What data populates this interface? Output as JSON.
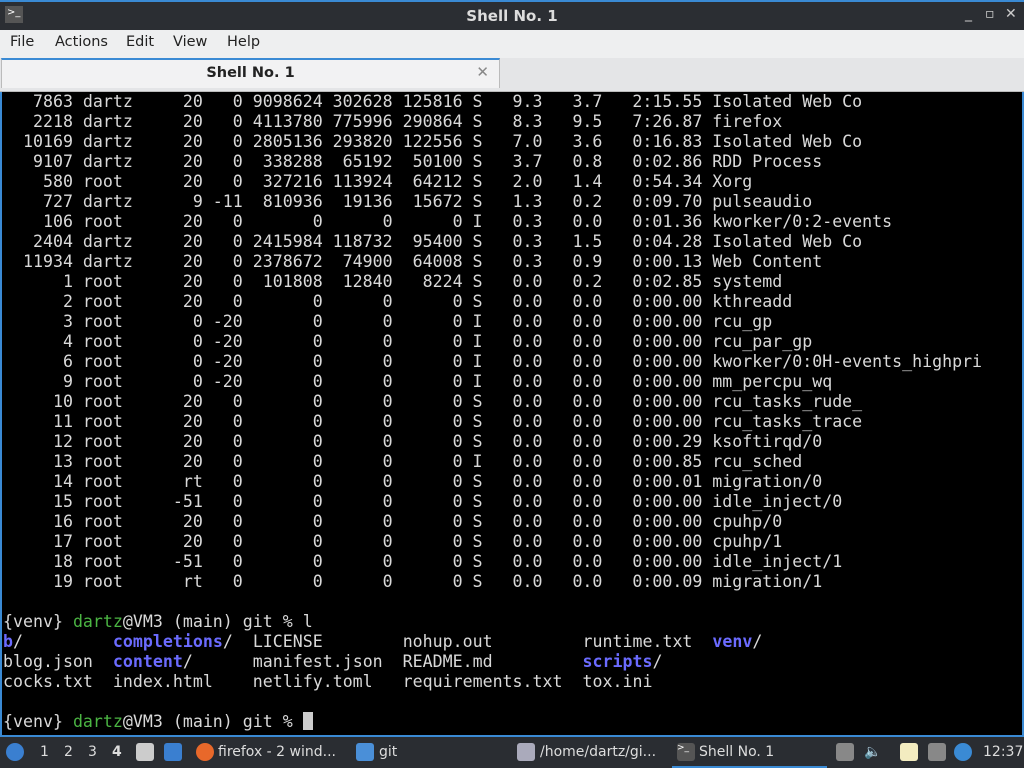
{
  "window": {
    "title": "Shell No. 1"
  },
  "menu": [
    "File",
    "Actions",
    "Edit",
    "View",
    "Help"
  ],
  "tab": {
    "label": "Shell No. 1"
  },
  "processes": [
    [
      "7863",
      "dartz",
      "20",
      "0",
      "9098624",
      "302628",
      "125816",
      "S",
      "9.3",
      "3.7",
      "2:15.55",
      "Isolated Web Co"
    ],
    [
      "2218",
      "dartz",
      "20",
      "0",
      "4113780",
      "775996",
      "290864",
      "S",
      "8.3",
      "9.5",
      "7:26.87",
      "firefox"
    ],
    [
      "10169",
      "dartz",
      "20",
      "0",
      "2805136",
      "293820",
      "122556",
      "S",
      "7.0",
      "3.6",
      "0:16.83",
      "Isolated Web Co"
    ],
    [
      "9107",
      "dartz",
      "20",
      "0",
      "338288",
      "65192",
      "50100",
      "S",
      "3.7",
      "0.8",
      "0:02.86",
      "RDD Process"
    ],
    [
      "580",
      "root",
      "20",
      "0",
      "327216",
      "113924",
      "64212",
      "S",
      "2.0",
      "1.4",
      "0:54.34",
      "Xorg"
    ],
    [
      "727",
      "dartz",
      "9",
      "-11",
      "810936",
      "19136",
      "15672",
      "S",
      "1.3",
      "0.2",
      "0:09.70",
      "pulseaudio"
    ],
    [
      "106",
      "root",
      "20",
      "0",
      "0",
      "0",
      "0",
      "I",
      "0.3",
      "0.0",
      "0:01.36",
      "kworker/0:2-events"
    ],
    [
      "2404",
      "dartz",
      "20",
      "0",
      "2415984",
      "118732",
      "95400",
      "S",
      "0.3",
      "1.5",
      "0:04.28",
      "Isolated Web Co"
    ],
    [
      "11934",
      "dartz",
      "20",
      "0",
      "2378672",
      "74900",
      "64008",
      "S",
      "0.3",
      "0.9",
      "0:00.13",
      "Web Content"
    ],
    [
      "1",
      "root",
      "20",
      "0",
      "101808",
      "12840",
      "8224",
      "S",
      "0.0",
      "0.2",
      "0:02.85",
      "systemd"
    ],
    [
      "2",
      "root",
      "20",
      "0",
      "0",
      "0",
      "0",
      "S",
      "0.0",
      "0.0",
      "0:00.00",
      "kthreadd"
    ],
    [
      "3",
      "root",
      "0",
      "-20",
      "0",
      "0",
      "0",
      "I",
      "0.0",
      "0.0",
      "0:00.00",
      "rcu_gp"
    ],
    [
      "4",
      "root",
      "0",
      "-20",
      "0",
      "0",
      "0",
      "I",
      "0.0",
      "0.0",
      "0:00.00",
      "rcu_par_gp"
    ],
    [
      "6",
      "root",
      "0",
      "-20",
      "0",
      "0",
      "0",
      "I",
      "0.0",
      "0.0",
      "0:00.00",
      "kworker/0:0H-events_highpri"
    ],
    [
      "9",
      "root",
      "0",
      "-20",
      "0",
      "0",
      "0",
      "I",
      "0.0",
      "0.0",
      "0:00.00",
      "mm_percpu_wq"
    ],
    [
      "10",
      "root",
      "20",
      "0",
      "0",
      "0",
      "0",
      "S",
      "0.0",
      "0.0",
      "0:00.00",
      "rcu_tasks_rude_"
    ],
    [
      "11",
      "root",
      "20",
      "0",
      "0",
      "0",
      "0",
      "S",
      "0.0",
      "0.0",
      "0:00.00",
      "rcu_tasks_trace"
    ],
    [
      "12",
      "root",
      "20",
      "0",
      "0",
      "0",
      "0",
      "S",
      "0.0",
      "0.0",
      "0:00.29",
      "ksoftirqd/0"
    ],
    [
      "13",
      "root",
      "20",
      "0",
      "0",
      "0",
      "0",
      "I",
      "0.0",
      "0.0",
      "0:00.85",
      "rcu_sched"
    ],
    [
      "14",
      "root",
      "rt",
      "0",
      "0",
      "0",
      "0",
      "S",
      "0.0",
      "0.0",
      "0:00.01",
      "migration/0"
    ],
    [
      "15",
      "root",
      "-51",
      "0",
      "0",
      "0",
      "0",
      "S",
      "0.0",
      "0.0",
      "0:00.00",
      "idle_inject/0"
    ],
    [
      "16",
      "root",
      "20",
      "0",
      "0",
      "0",
      "0",
      "S",
      "0.0",
      "0.0",
      "0:00.00",
      "cpuhp/0"
    ],
    [
      "17",
      "root",
      "20",
      "0",
      "0",
      "0",
      "0",
      "S",
      "0.0",
      "0.0",
      "0:00.00",
      "cpuhp/1"
    ],
    [
      "18",
      "root",
      "-51",
      "0",
      "0",
      "0",
      "0",
      "S",
      "0.0",
      "0.0",
      "0:00.00",
      "idle_inject/1"
    ],
    [
      "19",
      "root",
      "rt",
      "0",
      "0",
      "0",
      "0",
      "S",
      "0.0",
      "0.0",
      "0:00.09",
      "migration/1"
    ]
  ],
  "prompt": {
    "venv": "{venv}",
    "user": "dartz",
    "host": "@VM3 (main) git % ",
    "command1": "l"
  },
  "ls_rows": [
    [
      {
        "n": "b",
        "dir": true
      },
      {
        "n": "completions",
        "dir": true
      },
      {
        "n": "LICENSE"
      },
      {
        "n": "nohup.out"
      },
      {
        "n": "runtime.txt"
      },
      {
        "n": "venv",
        "dir": true
      }
    ],
    [
      {
        "n": "blog.json"
      },
      {
        "n": "content",
        "dir": true
      },
      {
        "n": "manifest.json"
      },
      {
        "n": "README.md"
      },
      {
        "n": "scripts",
        "dir": true
      }
    ],
    [
      {
        "n": "cocks.txt"
      },
      {
        "n": "index.html"
      },
      {
        "n": "netlify.toml"
      },
      {
        "n": "requirements.txt"
      },
      {
        "n": "tox.ini"
      }
    ]
  ],
  "colors": {
    "accent": "#3a8ad4",
    "prompt_green": "#4bb543",
    "dir_blue": "#6b6bff"
  },
  "taskbar": {
    "workspaces": [
      "1",
      "2",
      "3",
      "4"
    ],
    "tasks": [
      "firefox - 2 wind...",
      "git",
      "/home/dartz/gi...",
      "Shell No. 1"
    ],
    "clock": "12:37"
  }
}
